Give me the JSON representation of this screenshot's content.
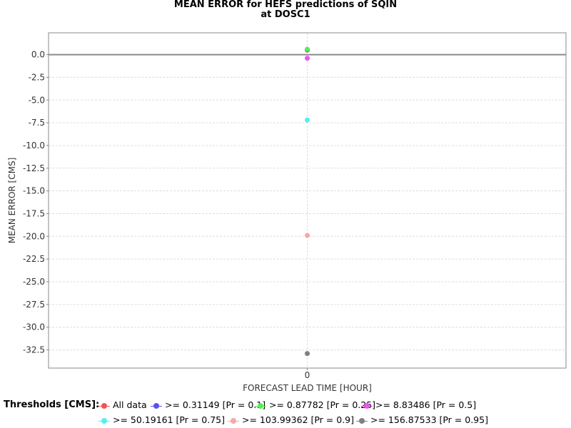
{
  "chart_data": {
    "type": "scatter",
    "title_line1": "MEAN ERROR for HEFS predictions of SQIN",
    "title_line2": "at DOSC1",
    "xlabel": "FORECAST LEAD TIME [HOUR]",
    "ylabel": "MEAN ERROR [CMS]",
    "x_ticks": [
      "0"
    ],
    "y_ticks": [
      "0.0",
      "-2.5",
      "-5.0",
      "-7.5",
      "-10.0",
      "-12.5",
      "-15.0",
      "-17.5",
      "-20.0",
      "-22.5",
      "-25.0",
      "-27.5",
      "-30.0",
      "-32.5"
    ],
    "ylim": [
      -34.5,
      2.4
    ],
    "xlim": [
      -1,
      1
    ],
    "reference_line_y": 0,
    "legend_title": "Thresholds [CMS]:",
    "series": [
      {
        "name": "All data",
        "color": "#ee5555",
        "x": 0,
        "y": 0.5
      },
      {
        "name": ">= 0.31149 [Pr = 0.1]",
        "color": "#5555ee",
        "x": 0,
        "y": 0.55
      },
      {
        "name": ">= 0.87782 [Pr = 0.25]",
        "color": "#55ee55",
        "x": 0,
        "y": 0.6
      },
      {
        "name": ">= 8.83486 [Pr = 0.5]",
        "color": "#ee55ee",
        "x": 0,
        "y": -0.4
      },
      {
        "name": ">= 50.19161 [Pr = 0.75]",
        "color": "#55eeee",
        "x": 0,
        "y": -7.2
      },
      {
        "name": ">= 103.99362 [Pr = 0.9]",
        "color": "#f5a8a8",
        "x": 0,
        "y": -19.9
      },
      {
        "name": ">= 156.87533 [Pr = 0.95]",
        "color": "#808080",
        "x": 0,
        "y": -32.9
      }
    ]
  }
}
